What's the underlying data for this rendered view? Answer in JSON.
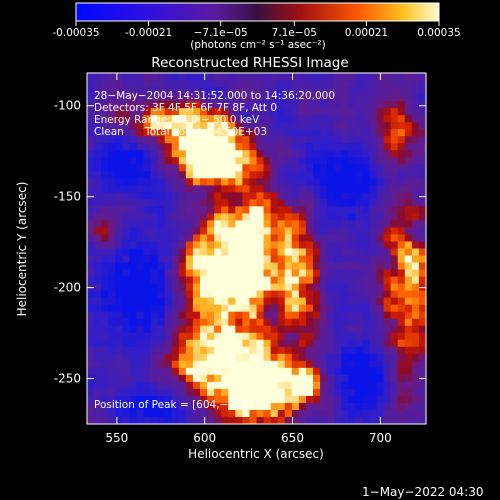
{
  "colorbar": {
    "tick_labels": [
      "-0.00035",
      "-0.00021",
      "−7.1e−05",
      "7.1e−05",
      "0.00021",
      "0.00035"
    ],
    "tick_values": [
      -0.00035,
      -0.00021,
      -7.1e-05,
      7.1e-05,
      0.00021,
      0.00035
    ],
    "range": [
      -0.00035,
      0.00035
    ],
    "units_label": "(photons cm⁻² s⁻¹ asec⁻²)"
  },
  "image": {
    "title": "Reconstructed RHESSI Image",
    "xlabel": "Heliocentric X (arcsec)",
    "ylabel": "Heliocentric Y (arcsec)",
    "xlim": [
      533,
      726
    ],
    "ylim": [
      -275,
      -82
    ],
    "x_ticks": [
      "550",
      "600",
      "650",
      "700"
    ],
    "x_tick_values": [
      550,
      600,
      650,
      700
    ],
    "y_ticks": [
      "-100",
      "-150",
      "-200",
      "-250"
    ],
    "y_tick_values": [
      -100,
      -150,
      -200,
      -250
    ],
    "annotations": {
      "time_range": "28−May−2004 14:31:52.000 to 14:36:20.000",
      "detectors": "Detectors: 3F 4F 5F 6F 7F 8F, Att 0",
      "energy": "Energy Range: 25.0 − 50.0 keV",
      "clean_label": "Clean",
      "total_counts": "Total counts: 4.50E+03",
      "peak": "Position of Peak = [604,−126]"
    },
    "peaks": [
      {
        "x": 604,
        "y": -126
      },
      {
        "x": 632,
        "y": -255
      },
      {
        "x": 620,
        "y": -200
      }
    ]
  },
  "footer": {
    "timestamp": "1−May−2022 04:30"
  },
  "colors": {
    "background": "#000000",
    "text": "#ffffff",
    "low": "#0a14e6",
    "mid": "#5a1aa0",
    "high": "#ffe14b",
    "max": "#ffffff"
  }
}
